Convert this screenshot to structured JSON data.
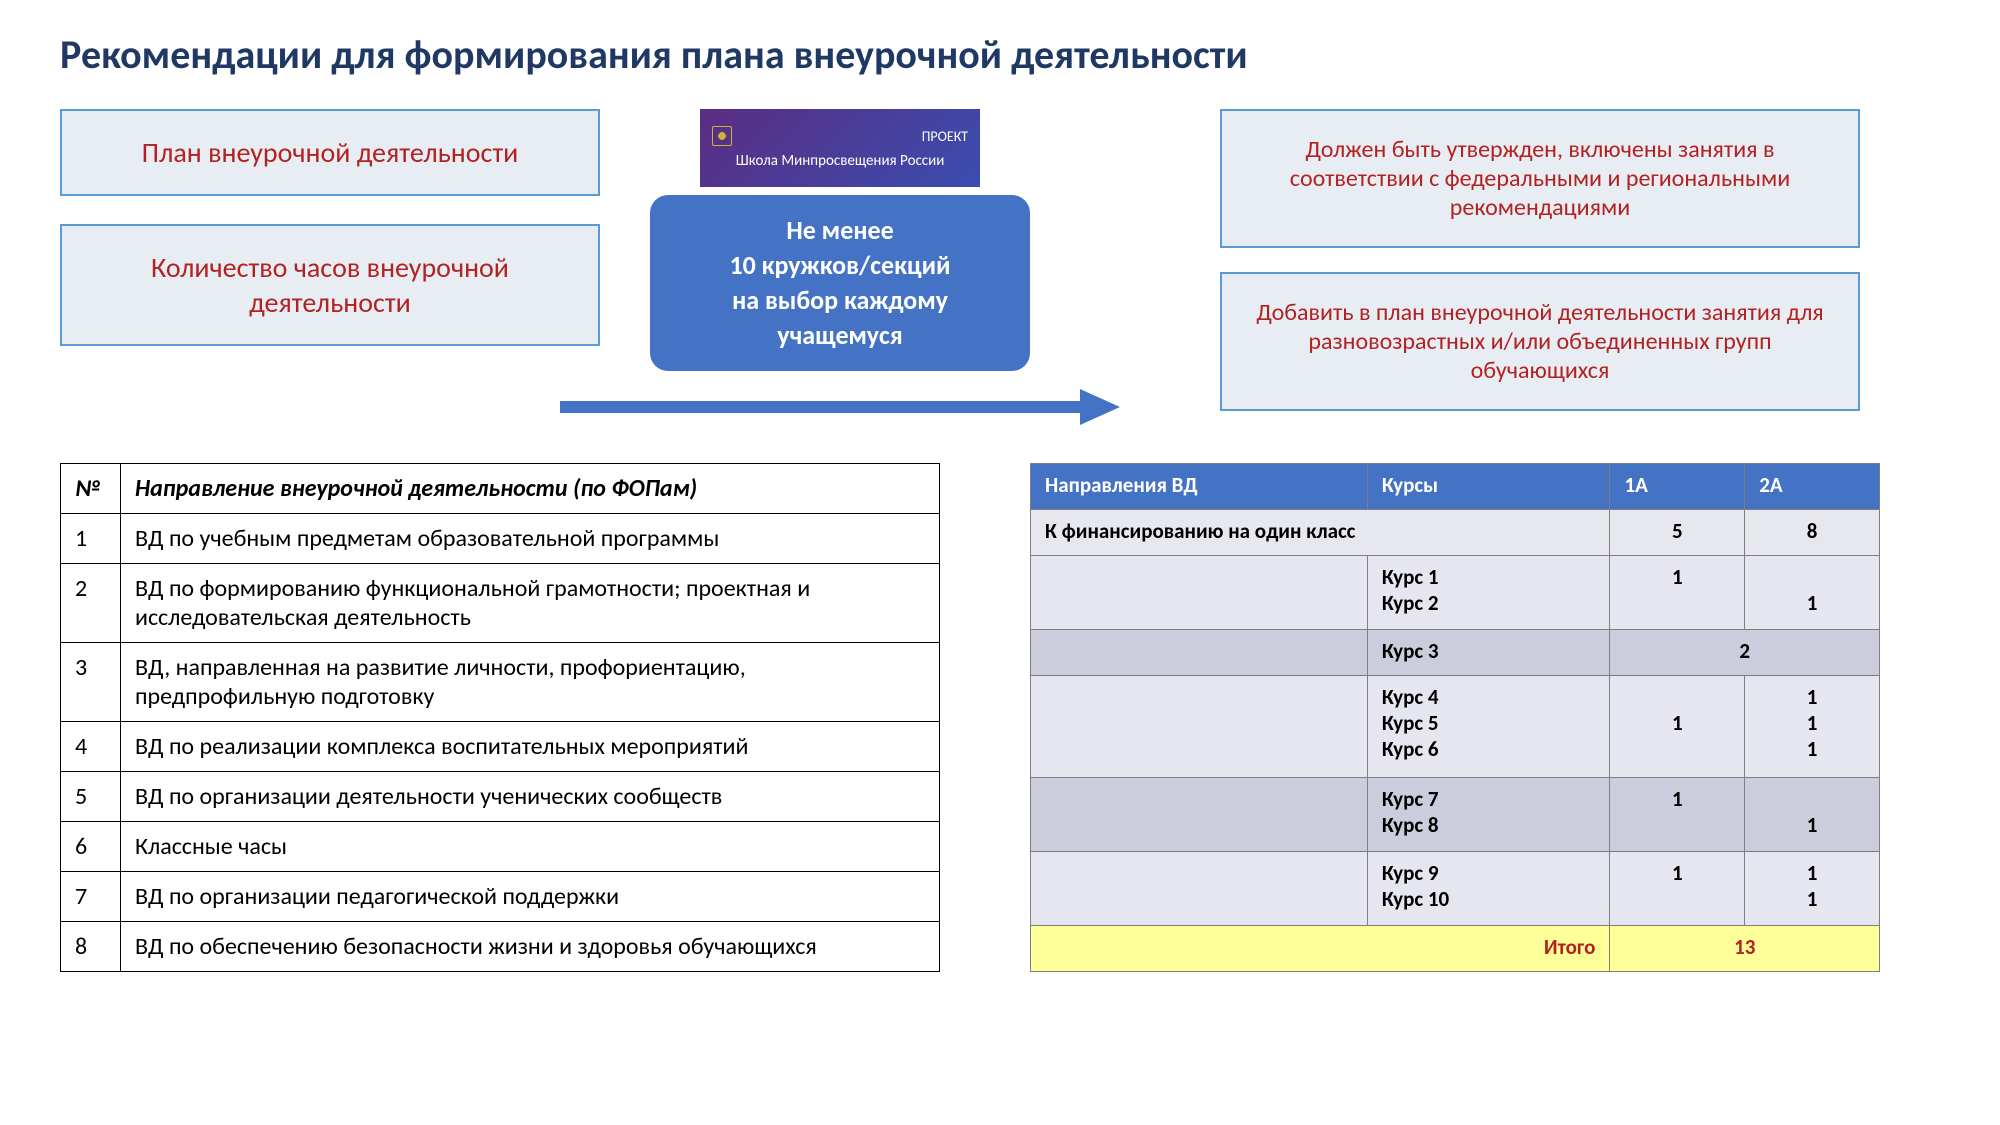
{
  "title": "Рекомендации для формирования плана внеурочной деятельности",
  "boxes": {
    "plan": "План внеурочной деятельности",
    "hours": "Количество часов внеурочной деятельности",
    "approved": "Должен быть утвержден, включены занятия в соответствии с федеральными и региональными рекомендациями",
    "addToPlan": "Добавить в план внеурочной деятельности занятия для разновозрастных и/или объединенных групп обучающихся"
  },
  "center": {
    "projectLabel": "ПРОЕКТ",
    "projectSub": "Школа Минпросвещения России",
    "main": "Не менее\n10 кружков/секций\nна выбор каждому\nучащемуся"
  },
  "directionsTable": {
    "headers": {
      "num": "№",
      "dir": "Направление внеурочной деятельности (по ФОПам)"
    },
    "rows": [
      {
        "n": "1",
        "t": "ВД по учебным предметам образовательной программы"
      },
      {
        "n": "2",
        "t": "ВД по формированию функциональной грамотности; проектная и исследовательская деятельность"
      },
      {
        "n": "3",
        "t": "ВД, направленная на развитие личности, профориентацию, предпрофильную подготовку"
      },
      {
        "n": "4",
        "t": "ВД по реализации комплекса воспитательных мероприятий"
      },
      {
        "n": "5",
        "t": "ВД по организации деятельности ученических сообществ"
      },
      {
        "n": "6",
        "t": "Классные часы"
      },
      {
        "n": "7",
        "t": "ВД по организации педагогической поддержки"
      },
      {
        "n": "8",
        "t": "ВД по обеспечению безопасности жизни и здоровья обучающихся"
      }
    ]
  },
  "coursesTable": {
    "headers": {
      "dir": "Направления ВД",
      "course": "Курсы",
      "c1": "1А",
      "c2": "2А"
    },
    "finance": {
      "label": "К финансированию на один класс",
      "v1": "5",
      "v2": "8"
    },
    "groups": [
      {
        "shade": "light",
        "courses": [
          "Курс 1",
          "Курс 2"
        ],
        "v1": [
          "1",
          ""
        ],
        "v2": [
          "",
          "1"
        ]
      },
      {
        "shade": "dark",
        "courses": [
          "Курс 3"
        ],
        "merged": "2"
      },
      {
        "shade": "light",
        "courses": [
          "Курс 4",
          "Курс 5",
          "Курс 6"
        ],
        "v1": [
          "",
          "1",
          ""
        ],
        "v2": [
          "1",
          "1",
          "1"
        ]
      },
      {
        "shade": "dark",
        "courses": [
          "Курс 7",
          "Курс 8"
        ],
        "v1": [
          "1",
          ""
        ],
        "v2": [
          "",
          "1"
        ]
      },
      {
        "shade": "light",
        "courses": [
          "Курс 9",
          "Курс 10"
        ],
        "v1": [
          "1",
          ""
        ],
        "v2": [
          "1",
          "1"
        ]
      }
    ],
    "total": {
      "label": "Итого",
      "value": "13"
    }
  },
  "colors": {
    "titleColor": "#1f3864",
    "boxBorder": "#5b9bd5",
    "boxBg": "#e8edf3",
    "boxText": "#b22222",
    "centerBg": "#4472c4",
    "tableHeaderBg": "#4472c4",
    "rowLight": "#e5e6ef",
    "rowDark": "#cbcddd",
    "totalBg": "#ffff99",
    "totalText": "#b22222"
  }
}
